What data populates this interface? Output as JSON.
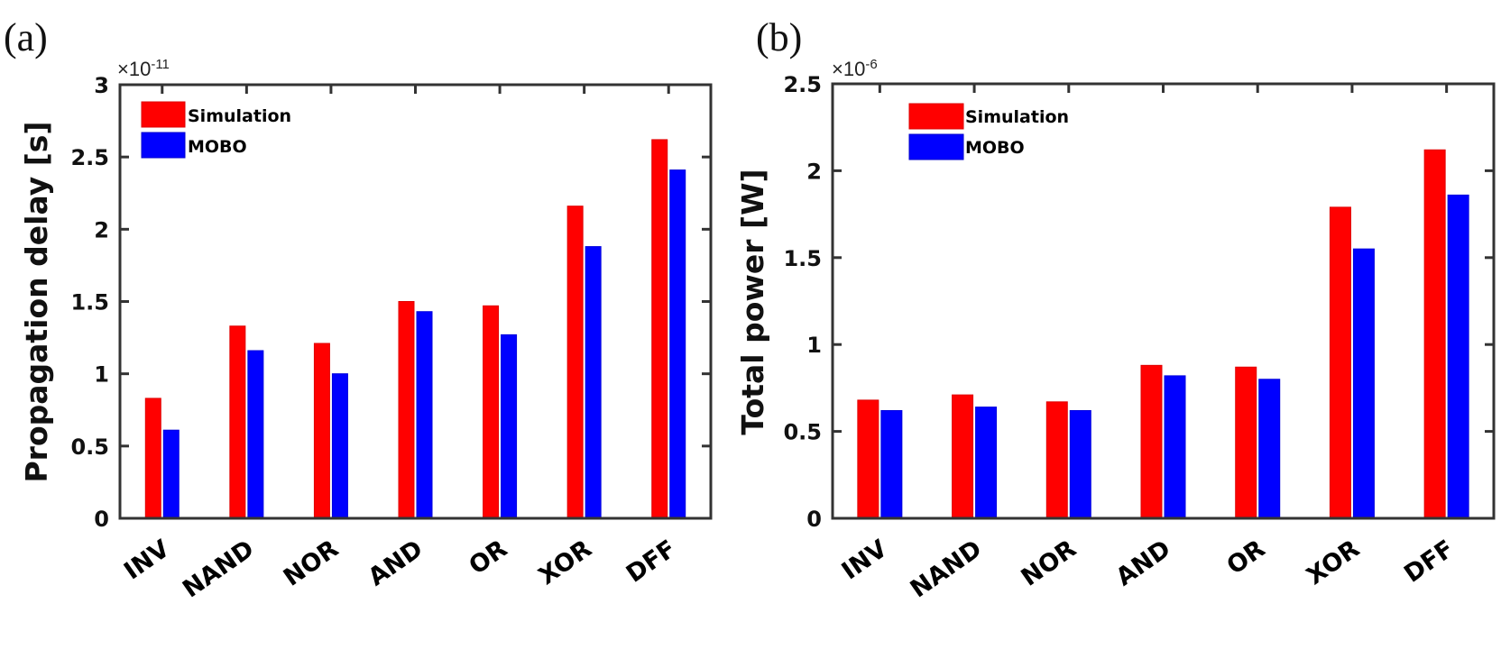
{
  "chart_data": [
    {
      "type": "bar",
      "panel_label": "(a)",
      "title": "",
      "xlabel": "",
      "ylabel": "Propagation delay [s]",
      "y_exponent_label": "×10",
      "y_exponent_power": "-11",
      "ylim": [
        0,
        3
      ],
      "yticks": [
        0,
        0.5,
        1,
        1.5,
        2,
        2.5,
        3
      ],
      "ytick_labels": [
        "0",
        "0.5",
        "1",
        "1.5",
        "2",
        "2.5",
        "3"
      ],
      "grid": false,
      "legend_position": "top-left",
      "categories": [
        "INV",
        "NAND",
        "NOR",
        "AND",
        "OR",
        "XOR",
        "DFF"
      ],
      "series": [
        {
          "name": "Simulation",
          "color": "#ff0000",
          "values": [
            0.83,
            1.33,
            1.21,
            1.5,
            1.47,
            2.16,
            2.62
          ]
        },
        {
          "name": "MOBO",
          "color": "#0000ff",
          "values": [
            0.61,
            1.16,
            1.0,
            1.43,
            1.27,
            1.88,
            2.41
          ]
        }
      ]
    },
    {
      "type": "bar",
      "panel_label": "(b)",
      "title": "",
      "xlabel": "",
      "ylabel": "Total power [W]",
      "y_exponent_label": "×10",
      "y_exponent_power": "-6",
      "ylim": [
        0,
        2.5
      ],
      "yticks": [
        0,
        0.5,
        1,
        1.5,
        2,
        2.5
      ],
      "ytick_labels": [
        "0",
        "0.5",
        "1",
        "1.5",
        "2",
        "2.5"
      ],
      "grid": false,
      "legend_position": "top-left",
      "categories": [
        "INV",
        "NAND",
        "NOR",
        "AND",
        "OR",
        "XOR",
        "DFF"
      ],
      "series": [
        {
          "name": "Simulation",
          "color": "#ff0000",
          "values": [
            0.68,
            0.71,
            0.67,
            0.88,
            0.87,
            1.79,
            2.12
          ]
        },
        {
          "name": "MOBO",
          "color": "#0000ff",
          "values": [
            0.62,
            0.64,
            0.62,
            0.82,
            0.8,
            1.55,
            1.86
          ]
        }
      ]
    }
  ]
}
